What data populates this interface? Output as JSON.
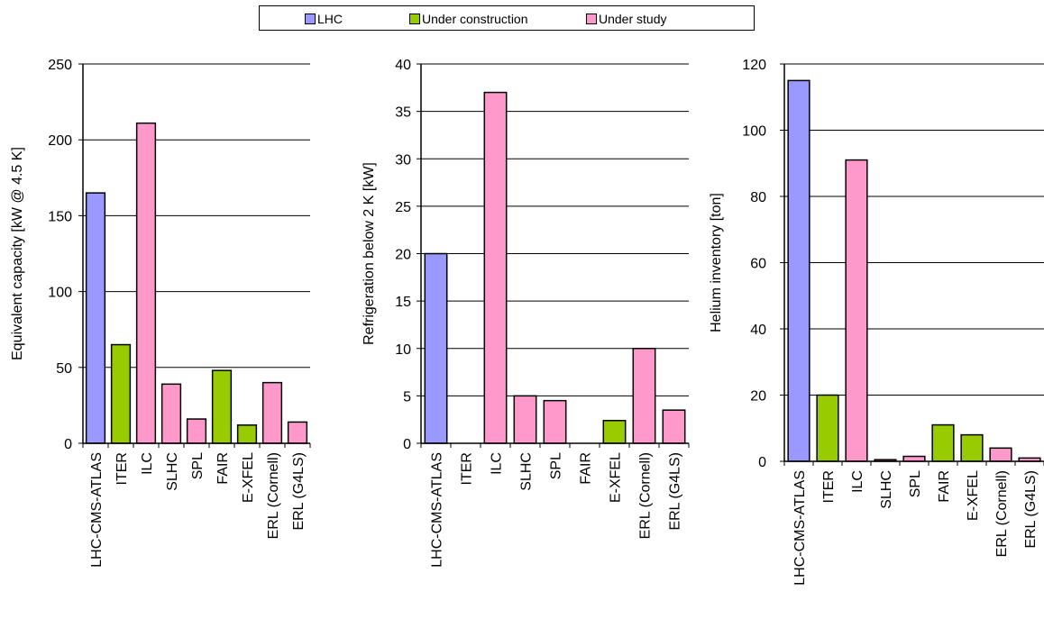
{
  "legend": {
    "items": [
      {
        "label": "LHC",
        "color": "#9999ff"
      },
      {
        "label": "Under construction",
        "color": "#99cc00"
      },
      {
        "label": "Under study",
        "color": "#ff99cc"
      }
    ]
  },
  "chart_data": [
    {
      "type": "bar",
      "categories": [
        "LHC-CMS-ATLAS",
        "ITER",
        "ILC",
        "SLHC",
        "SPL",
        "FAIR",
        "E-XFEL",
        "ERL (Cornell)",
        "ERL (G4LS)"
      ],
      "groups": [
        "LHC",
        "Under construction",
        "Under study",
        "Under study",
        "Under study",
        "Under construction",
        "Under construction",
        "Under study",
        "Under study"
      ],
      "values": [
        165,
        65,
        211,
        39,
        16,
        48,
        12,
        40,
        14
      ],
      "ylabel": "Equivalent capacity [kW @ 4.5 K]",
      "ylim": [
        0,
        250
      ],
      "yticks": [
        0,
        50,
        100,
        150,
        200,
        250
      ],
      "grid": true
    },
    {
      "type": "bar",
      "categories": [
        "LHC-CMS-ATLAS",
        "ITER",
        "ILC",
        "SLHC",
        "SPL",
        "FAIR",
        "E-XFEL",
        "ERL (Cornell)",
        "ERL (G4LS)"
      ],
      "groups": [
        "LHC",
        "Under construction",
        "Under study",
        "Under study",
        "Under study",
        "Under construction",
        "Under construction",
        "Under study",
        "Under study"
      ],
      "values": [
        20,
        0,
        37,
        5,
        4.5,
        0,
        2.4,
        10,
        3.5
      ],
      "ylabel": "Refrigeration below 2 K [kW]",
      "ylim": [
        0,
        40
      ],
      "yticks": [
        0,
        5,
        10,
        15,
        20,
        25,
        30,
        35,
        40
      ],
      "grid": true
    },
    {
      "type": "bar",
      "categories": [
        "LHC-CMS-ATLAS",
        "ITER",
        "ILC",
        "SLHC",
        "SPL",
        "FAIR",
        "E-XFEL",
        "ERL (Cornell)",
        "ERL (G4LS)"
      ],
      "groups": [
        "LHC",
        "Under construction",
        "Under study",
        "Under study",
        "Under study",
        "Under construction",
        "Under construction",
        "Under study",
        "Under study"
      ],
      "values": [
        115,
        20,
        91,
        0.5,
        1.5,
        11,
        8,
        4,
        1
      ],
      "ylabel": "Helium inventory [ton]",
      "ylim": [
        0,
        120
      ],
      "yticks": [
        0,
        20,
        40,
        60,
        80,
        100,
        120
      ],
      "grid": true
    }
  ]
}
